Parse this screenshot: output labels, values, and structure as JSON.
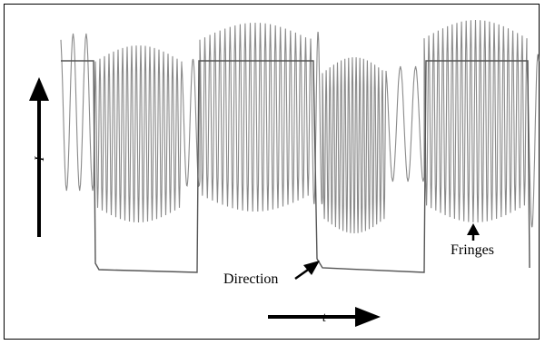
{
  "labels": {
    "direction": "Direction",
    "fringes": "Fringes",
    "x_axis": "t",
    "y_axis": "I"
  },
  "colors": {
    "signal": "#8a8a8a",
    "direction_line": "#555555",
    "ink": "#000000"
  }
}
